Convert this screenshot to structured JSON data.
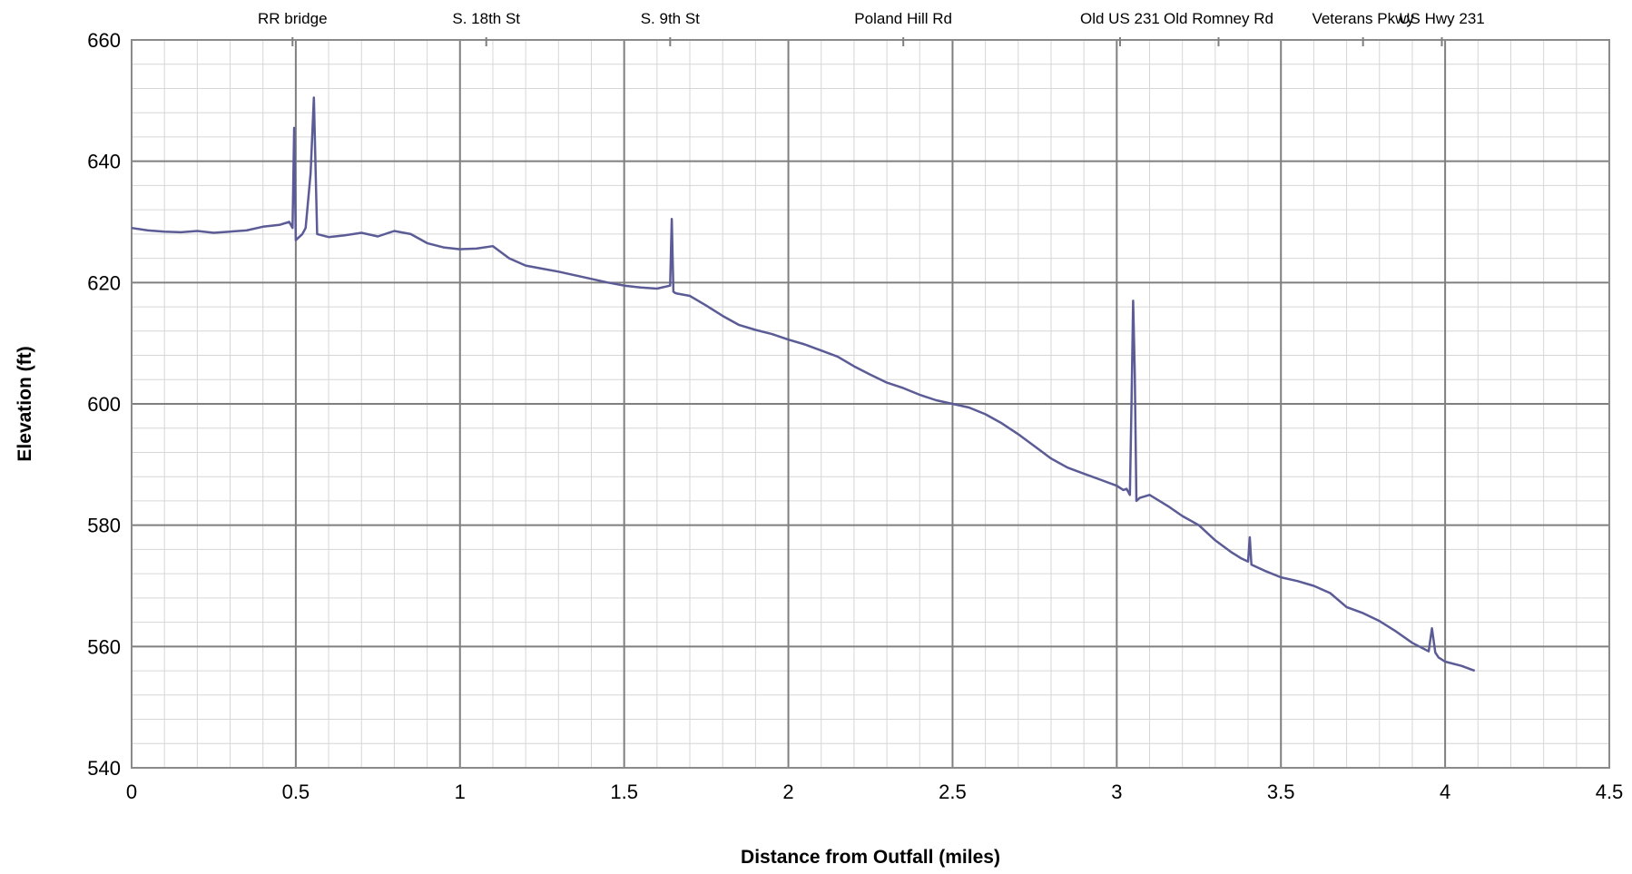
{
  "chart_data": {
    "type": "line",
    "title": "",
    "xlabel": "Distance from Outfall (miles)",
    "ylabel": "Elevation (ft)",
    "xlim": [
      0,
      4.5
    ],
    "ylim": [
      540,
      660
    ],
    "x_major_step": 0.5,
    "y_major_step": 20,
    "x_minor_step": 0.1,
    "y_minor_step": 4,
    "x_tick_labels": [
      "0",
      "0.5",
      "1",
      "1.5",
      "2",
      "2.5",
      "3",
      "3.5",
      "4",
      "4.5"
    ],
    "y_tick_labels": [
      "540",
      "560",
      "580",
      "600",
      "620",
      "640",
      "660"
    ],
    "grid": true,
    "legend": "none",
    "landmarks": [
      {
        "name": "RR bridge",
        "x": 0.49
      },
      {
        "name": "S. 18th St",
        "x": 1.08
      },
      {
        "name": "S. 9th St",
        "x": 1.64
      },
      {
        "name": "Poland Hill Rd",
        "x": 2.35
      },
      {
        "name": "Old US 231",
        "x": 3.01
      },
      {
        "name": "Old Romney Rd",
        "x": 3.31
      },
      {
        "name": "Veterans Pkwy",
        "x": 3.75
      },
      {
        "name": "US Hwy 231",
        "x": 3.99
      }
    ],
    "series": [
      {
        "color": "#5b5b96",
        "x": [
          0,
          0.05,
          0.1,
          0.15,
          0.2,
          0.25,
          0.3,
          0.35,
          0.4,
          0.45,
          0.48,
          0.49,
          0.495,
          0.5,
          0.52,
          0.53,
          0.545,
          0.555,
          0.565,
          0.6,
          0.65,
          0.7,
          0.75,
          0.8,
          0.85,
          0.9,
          0.95,
          1.0,
          1.05,
          1.1,
          1.15,
          1.2,
          1.25,
          1.3,
          1.35,
          1.4,
          1.45,
          1.5,
          1.55,
          1.6,
          1.64,
          1.645,
          1.65,
          1.655,
          1.66,
          1.7,
          1.75,
          1.8,
          1.85,
          1.9,
          1.95,
          2.0,
          2.05,
          2.1,
          2.15,
          2.2,
          2.25,
          2.3,
          2.35,
          2.4,
          2.45,
          2.5,
          2.55,
          2.6,
          2.65,
          2.7,
          2.75,
          2.8,
          2.85,
          2.9,
          2.95,
          3.0,
          3.02,
          3.03,
          3.04,
          3.045,
          3.05,
          3.055,
          3.06,
          3.07,
          3.1,
          3.13,
          3.16,
          3.2,
          3.25,
          3.3,
          3.35,
          3.38,
          3.4,
          3.405,
          3.41,
          3.45,
          3.5,
          3.55,
          3.6,
          3.65,
          3.7,
          3.75,
          3.8,
          3.85,
          3.9,
          3.95,
          3.96,
          3.97,
          3.98,
          4.0,
          4.05,
          4.09
        ],
        "y": [
          629,
          628.6,
          628.4,
          628.3,
          628.5,
          628.2,
          628.4,
          628.6,
          629.2,
          629.5,
          630,
          629,
          645.5,
          627,
          628,
          629,
          638,
          650.5,
          628,
          627.5,
          627.8,
          628.2,
          627.6,
          628.5,
          628,
          626.5,
          625.8,
          625.5,
          625.6,
          626,
          624,
          622.8,
          622.3,
          621.8,
          621.2,
          620.6,
          620,
          619.5,
          619.2,
          619,
          619.5,
          630.5,
          618.5,
          618.3,
          618.2,
          617.8,
          616.2,
          614.5,
          613,
          612.2,
          611.5,
          610.6,
          609.8,
          608.8,
          607.8,
          606.2,
          604.8,
          603.5,
          602.6,
          601.5,
          600.6,
          600,
          599.4,
          598.3,
          596.8,
          595,
          593,
          591,
          589.5,
          588.5,
          587.5,
          586.5,
          585.8,
          586,
          585,
          600,
          617,
          605,
          584,
          584.5,
          585,
          584,
          583,
          581.5,
          580,
          577.5,
          575.5,
          574.5,
          574,
          578,
          573.5,
          572.5,
          571.4,
          570.8,
          570,
          568.8,
          566.5,
          565.5,
          564.2,
          562.5,
          560.6,
          559.2,
          563,
          559,
          558.2,
          557.5,
          556.8,
          556
        ]
      }
    ]
  }
}
